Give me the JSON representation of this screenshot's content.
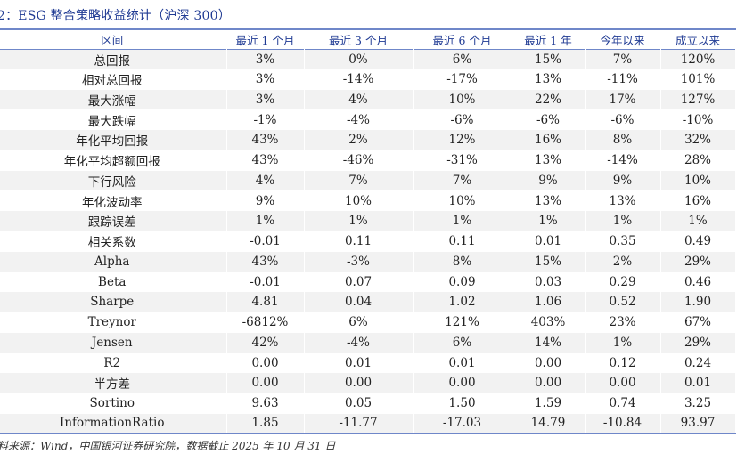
{
  "title": "2：ESG 整合策略收益统计（沪深 300）",
  "table": {
    "headers": [
      "区间",
      "最近 1 个月",
      "最近 3 个月",
      "最近 6 个月",
      "最近 1 年",
      "今年以来",
      "成立以来"
    ],
    "rows": [
      [
        "总回报",
        "3%",
        "0%",
        "6%",
        "15%",
        "7%",
        "120%"
      ],
      [
        "相对总回报",
        "3%",
        "-14%",
        "-17%",
        "13%",
        "-11%",
        "101%"
      ],
      [
        "最大涨幅",
        "3%",
        "4%",
        "10%",
        "22%",
        "17%",
        "127%"
      ],
      [
        "最大跌幅",
        "-1%",
        "-4%",
        "-6%",
        "-6%",
        "-6%",
        "-10%"
      ],
      [
        "年化平均回报",
        "43%",
        "2%",
        "12%",
        "16%",
        "8%",
        "32%"
      ],
      [
        "年化平均超额回报",
        "43%",
        "-46%",
        "-31%",
        "13%",
        "-14%",
        "28%"
      ],
      [
        "下行风险",
        "4%",
        "7%",
        "7%",
        "9%",
        "9%",
        "10%"
      ],
      [
        "年化波动率",
        "9%",
        "10%",
        "10%",
        "13%",
        "13%",
        "16%"
      ],
      [
        "跟踪误差",
        "1%",
        "1%",
        "1%",
        "1%",
        "1%",
        "1%"
      ],
      [
        "相关系数",
        "-0.01",
        "0.11",
        "0.11",
        "0.01",
        "0.35",
        "0.49"
      ],
      [
        "Alpha",
        "43%",
        "-3%",
        "8%",
        "15%",
        "2%",
        "29%"
      ],
      [
        "Beta",
        "-0.01",
        "0.07",
        "0.09",
        "0.03",
        "0.29",
        "0.46"
      ],
      [
        "Sharpe",
        "4.81",
        "0.04",
        "1.02",
        "1.06",
        "0.52",
        "1.90"
      ],
      [
        "Treynor",
        "-6812%",
        "6%",
        "121%",
        "403%",
        "23%",
        "67%"
      ],
      [
        "Jensen",
        "42%",
        "-4%",
        "6%",
        "14%",
        "1%",
        "29%"
      ],
      [
        "R2",
        "0.00",
        "0.01",
        "0.01",
        "0.00",
        "0.12",
        "0.24"
      ],
      [
        "半方差",
        "0.00",
        "0.00",
        "0.00",
        "0.00",
        "0.00",
        "0.01"
      ],
      [
        "Sortino",
        "9.63",
        "0.05",
        "1.50",
        "1.59",
        "0.74",
        "3.25"
      ],
      [
        "InformationRatio",
        "1.85",
        "-11.77",
        "-17.03",
        "14.79",
        "-10.84",
        "93.97"
      ]
    ]
  },
  "source": "料来源：Wind，中国银河证券研究院，数据截止 2025 年 10 月 31 日",
  "colors": {
    "header_text": "#1f3a93",
    "rule": "#6f87c9",
    "stripe": "#f2f2f2"
  }
}
